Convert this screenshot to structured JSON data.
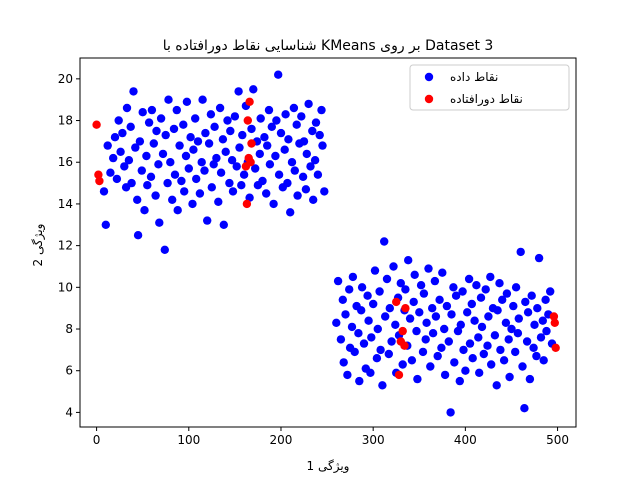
{
  "chart_data": {
    "type": "scatter",
    "title": "شناسایی نقاط دورافتاده با KMeans بر روی Dataset 3",
    "xlabel": "ویژگی 1",
    "ylabel": "ویژگی 2",
    "xlim": [
      -18,
      520
    ],
    "ylim": [
      3.3,
      21.0
    ],
    "xticks": [
      0,
      100,
      200,
      300,
      400,
      500
    ],
    "yticks": [
      4,
      6,
      8,
      10,
      12,
      14,
      16,
      18,
      20
    ],
    "legend_position": "top-right",
    "series": [
      {
        "name": "نقاط داده",
        "color": "#0000ff",
        "points": [
          [
            8,
            14.6
          ],
          [
            10,
            13.0
          ],
          [
            12,
            16.8
          ],
          [
            15,
            15.5
          ],
          [
            18,
            16.2
          ],
          [
            20,
            17.2
          ],
          [
            22,
            15.2
          ],
          [
            24,
            18.0
          ],
          [
            26,
            16.5
          ],
          [
            28,
            17.4
          ],
          [
            30,
            15.8
          ],
          [
            32,
            14.8
          ],
          [
            33,
            18.6
          ],
          [
            35,
            16.1
          ],
          [
            37,
            17.7
          ],
          [
            38,
            15.0
          ],
          [
            40,
            19.4
          ],
          [
            42,
            16.7
          ],
          [
            44,
            14.2
          ],
          [
            45,
            12.5
          ],
          [
            47,
            17.0
          ],
          [
            49,
            15.6
          ],
          [
            50,
            18.4
          ],
          [
            52,
            13.7
          ],
          [
            54,
            16.3
          ],
          [
            55,
            14.9
          ],
          [
            57,
            17.9
          ],
          [
            59,
            15.3
          ],
          [
            60,
            18.5
          ],
          [
            62,
            16.9
          ],
          [
            64,
            14.4
          ],
          [
            65,
            17.5
          ],
          [
            67,
            15.9
          ],
          [
            68,
            13.1
          ],
          [
            70,
            18.1
          ],
          [
            72,
            16.4
          ],
          [
            74,
            11.8
          ],
          [
            75,
            17.3
          ],
          [
            77,
            15.0
          ],
          [
            78,
            19.0
          ],
          [
            80,
            16.0
          ],
          [
            82,
            14.2
          ],
          [
            84,
            17.6
          ],
          [
            85,
            15.4
          ],
          [
            87,
            18.5
          ],
          [
            88,
            13.7
          ],
          [
            90,
            16.8
          ],
          [
            92,
            15.1
          ],
          [
            94,
            17.8
          ],
          [
            95,
            14.6
          ],
          [
            97,
            16.3
          ],
          [
            98,
            18.9
          ],
          [
            100,
            15.7
          ],
          [
            102,
            17.2
          ],
          [
            104,
            14.0
          ],
          [
            105,
            16.6
          ],
          [
            107,
            18.1
          ],
          [
            108,
            15.2
          ],
          [
            110,
            17.0
          ],
          [
            112,
            14.5
          ],
          [
            114,
            16.0
          ],
          [
            115,
            19.0
          ],
          [
            117,
            15.6
          ],
          [
            118,
            17.4
          ],
          [
            120,
            13.2
          ],
          [
            122,
            16.9
          ],
          [
            124,
            18.3
          ],
          [
            125,
            14.8
          ],
          [
            127,
            15.9
          ],
          [
            128,
            17.7
          ],
          [
            130,
            16.2
          ],
          [
            132,
            14.1
          ],
          [
            134,
            18.6
          ],
          [
            135,
            15.5
          ],
          [
            137,
            17.1
          ],
          [
            138,
            13.0
          ],
          [
            140,
            16.5
          ],
          [
            142,
            18.0
          ],
          [
            144,
            15.0
          ],
          [
            145,
            17.5
          ],
          [
            147,
            16.1
          ],
          [
            148,
            14.6
          ],
          [
            150,
            18.2
          ],
          [
            152,
            15.8
          ],
          [
            154,
            19.4
          ],
          [
            155,
            16.7
          ],
          [
            157,
            14.9
          ],
          [
            158,
            17.3
          ],
          [
            160,
            15.4
          ],
          [
            162,
            18.7
          ],
          [
            164,
            16.0
          ],
          [
            166,
            14.3
          ],
          [
            168,
            17.6
          ],
          [
            170,
            19.5
          ],
          [
            172,
            15.7
          ],
          [
            174,
            17.0
          ],
          [
            175,
            14.9
          ],
          [
            177,
            16.4
          ],
          [
            178,
            18.1
          ],
          [
            180,
            15.1
          ],
          [
            182,
            17.2
          ],
          [
            184,
            14.5
          ],
          [
            185,
            16.8
          ],
          [
            187,
            18.5
          ],
          [
            188,
            15.9
          ],
          [
            190,
            17.7
          ],
          [
            192,
            14.0
          ],
          [
            194,
            16.3
          ],
          [
            195,
            18.0
          ],
          [
            197,
            20.2
          ],
          [
            198,
            15.4
          ],
          [
            200,
            17.4
          ],
          [
            202,
            14.8
          ],
          [
            204,
            16.6
          ],
          [
            205,
            18.3
          ],
          [
            207,
            15.0
          ],
          [
            208,
            17.1
          ],
          [
            210,
            13.6
          ],
          [
            212,
            16.0
          ],
          [
            214,
            18.6
          ],
          [
            215,
            15.6
          ],
          [
            217,
            17.8
          ],
          [
            218,
            14.4
          ],
          [
            220,
            16.9
          ],
          [
            222,
            18.2
          ],
          [
            224,
            15.3
          ],
          [
            225,
            17.0
          ],
          [
            227,
            14.7
          ],
          [
            228,
            16.4
          ],
          [
            230,
            18.8
          ],
          [
            232,
            15.8
          ],
          [
            234,
            17.5
          ],
          [
            235,
            14.2
          ],
          [
            237,
            16.1
          ],
          [
            238,
            17.9
          ],
          [
            240,
            15.4
          ],
          [
            242,
            17.3
          ],
          [
            244,
            18.5
          ],
          [
            245,
            16.8
          ],
          [
            247,
            14.6
          ],
          [
            260,
            8.3
          ],
          [
            262,
            10.3
          ],
          [
            265,
            7.5
          ],
          [
            267,
            9.4
          ],
          [
            268,
            6.4
          ],
          [
            270,
            8.7
          ],
          [
            272,
            5.8
          ],
          [
            274,
            9.9
          ],
          [
            275,
            7.1
          ],
          [
            277,
            8.1
          ],
          [
            278,
            10.5
          ],
          [
            280,
            6.9
          ],
          [
            282,
            9.1
          ],
          [
            284,
            7.8
          ],
          [
            285,
            5.5
          ],
          [
            287,
            8.9
          ],
          [
            288,
            10.0
          ],
          [
            290,
            7.3
          ],
          [
            292,
            6.1
          ],
          [
            294,
            9.6
          ],
          [
            295,
            8.4
          ],
          [
            297,
            5.9
          ],
          [
            298,
            7.6
          ],
          [
            300,
            9.2
          ],
          [
            302,
            10.8
          ],
          [
            304,
            6.6
          ],
          [
            305,
            8.0
          ],
          [
            307,
            9.8
          ],
          [
            308,
            7.0
          ],
          [
            310,
            5.3
          ],
          [
            312,
            12.2
          ],
          [
            313,
            8.6
          ],
          [
            315,
            10.4
          ],
          [
            317,
            6.8
          ],
          [
            318,
            9.0
          ],
          [
            320,
            7.4
          ],
          [
            322,
            11.0
          ],
          [
            324,
            8.2
          ],
          [
            325,
            5.9
          ],
          [
            327,
            9.5
          ],
          [
            328,
            7.7
          ],
          [
            330,
            10.2
          ],
          [
            332,
            6.3
          ],
          [
            334,
            8.9
          ],
          [
            335,
            9.9
          ],
          [
            337,
            7.2
          ],
          [
            338,
            11.3
          ],
          [
            340,
            8.5
          ],
          [
            342,
            6.5
          ],
          [
            344,
            9.3
          ],
          [
            345,
            10.6
          ],
          [
            347,
            7.9
          ],
          [
            348,
            5.6
          ],
          [
            350,
            8.8
          ],
          [
            352,
            10.1
          ],
          [
            354,
            6.9
          ],
          [
            355,
            9.7
          ],
          [
            357,
            7.5
          ],
          [
            358,
            8.3
          ],
          [
            360,
            10.9
          ],
          [
            362,
            6.2
          ],
          [
            364,
            9.0
          ],
          [
            365,
            7.8
          ],
          [
            367,
            10.3
          ],
          [
            368,
            8.6
          ],
          [
            370,
            6.7
          ],
          [
            372,
            9.4
          ],
          [
            374,
            7.1
          ],
          [
            375,
            10.7
          ],
          [
            377,
            8.0
          ],
          [
            378,
            5.8
          ],
          [
            380,
            9.1
          ],
          [
            382,
            7.4
          ],
          [
            384,
            4.0
          ],
          [
            385,
            8.7
          ],
          [
            387,
            10.0
          ],
          [
            388,
            6.4
          ],
          [
            390,
            9.6
          ],
          [
            392,
            7.9
          ],
          [
            394,
            5.5
          ],
          [
            395,
            8.2
          ],
          [
            397,
            9.8
          ],
          [
            398,
            7.0
          ],
          [
            400,
            6.0
          ],
          [
            402,
            8.8
          ],
          [
            404,
            10.4
          ],
          [
            405,
            7.3
          ],
          [
            407,
            9.2
          ],
          [
            408,
            6.6
          ],
          [
            410,
            8.4
          ],
          [
            412,
            10.1
          ],
          [
            414,
            7.6
          ],
          [
            415,
            5.9
          ],
          [
            417,
            9.5
          ],
          [
            418,
            8.1
          ],
          [
            420,
            6.8
          ],
          [
            422,
            9.9
          ],
          [
            424,
            7.2
          ],
          [
            425,
            8.6
          ],
          [
            427,
            10.5
          ],
          [
            428,
            6.3
          ],
          [
            430,
            9.0
          ],
          [
            432,
            7.7
          ],
          [
            434,
            5.3
          ],
          [
            435,
            8.9
          ],
          [
            437,
            10.2
          ],
          [
            438,
            7.0
          ],
          [
            440,
            9.4
          ],
          [
            442,
            6.5
          ],
          [
            444,
            8.3
          ],
          [
            445,
            9.7
          ],
          [
            447,
            7.5
          ],
          [
            448,
            5.7
          ],
          [
            450,
            8.0
          ],
          [
            452,
            9.1
          ],
          [
            454,
            6.9
          ],
          [
            455,
            10.0
          ],
          [
            457,
            7.8
          ],
          [
            458,
            8.5
          ],
          [
            460,
            11.7
          ],
          [
            462,
            6.2
          ],
          [
            464,
            4.2
          ],
          [
            465,
            9.3
          ],
          [
            467,
            7.4
          ],
          [
            468,
            8.8
          ],
          [
            470,
            5.6
          ],
          [
            472,
            9.6
          ],
          [
            474,
            7.1
          ],
          [
            475,
            8.2
          ],
          [
            477,
            6.7
          ],
          [
            478,
            9.0
          ],
          [
            480,
            11.4
          ],
          [
            482,
            7.6
          ],
          [
            484,
            8.4
          ],
          [
            485,
            6.5
          ],
          [
            487,
            9.4
          ],
          [
            488,
            7.9
          ],
          [
            490,
            8.7
          ],
          [
            492,
            9.8
          ],
          [
            494,
            7.3
          ]
        ]
      },
      {
        "name": "نقاط دورافتاده",
        "color": "#ff0000",
        "points": [
          [
            0,
            17.8
          ],
          [
            2,
            15.4
          ],
          [
            3,
            15.1
          ],
          [
            162,
            15.8
          ],
          [
            164,
            18.0
          ],
          [
            165,
            16.2
          ],
          [
            166,
            18.9
          ],
          [
            167,
            16.0
          ],
          [
            168,
            16.9
          ],
          [
            163,
            14.0
          ],
          [
            325,
            9.3
          ],
          [
            330,
            7.4
          ],
          [
            332,
            7.9
          ],
          [
            334,
            7.2
          ],
          [
            335,
            9.0
          ],
          [
            328,
            5.8
          ],
          [
            496,
            8.6
          ],
          [
            497,
            8.3
          ],
          [
            498,
            7.1
          ]
        ]
      }
    ]
  }
}
